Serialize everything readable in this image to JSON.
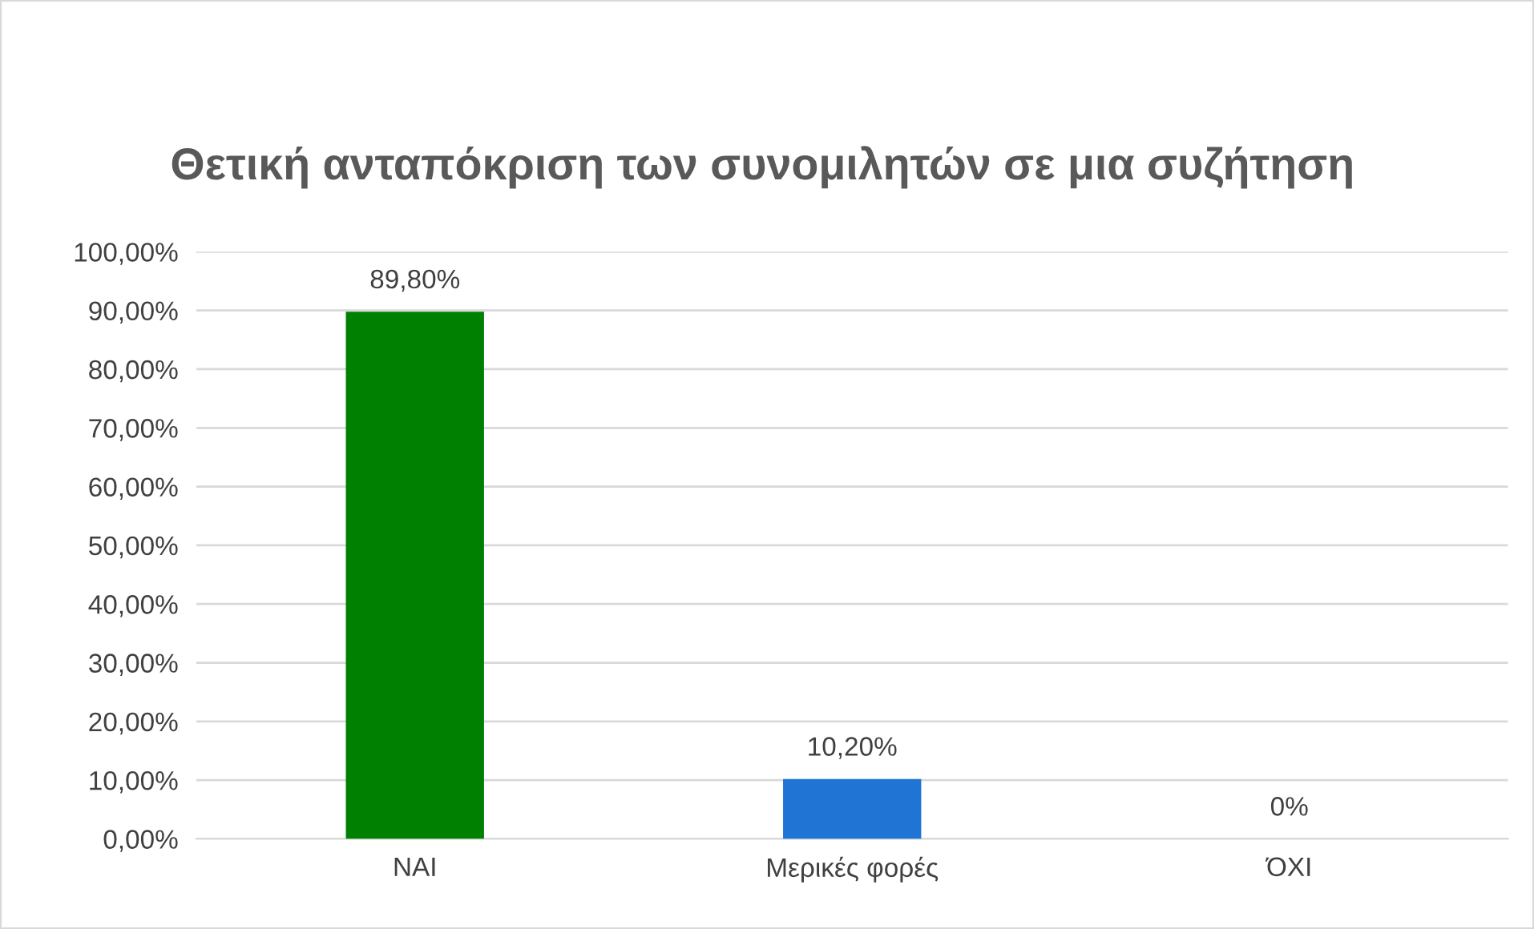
{
  "chart_data": {
    "type": "bar",
    "title": "Θετική ανταπόκριση των συνομιλητών σε μια συζήτηση",
    "categories": [
      "ΝΑΙ",
      "Μερικές φορές",
      "ΌΧΙ"
    ],
    "values": [
      89.8,
      10.2,
      0
    ],
    "colors": [
      "#008000",
      "#1f74d4",
      "#a5a5a5"
    ],
    "value_labels": [
      "89,80%",
      "10,20%",
      "0%"
    ],
    "ylim": [
      0,
      100
    ],
    "yticks": [
      {
        "value": 0,
        "label": "0,00%"
      },
      {
        "value": 10,
        "label": "10,00%"
      },
      {
        "value": 20,
        "label": "20,00%"
      },
      {
        "value": 30,
        "label": "30,00%"
      },
      {
        "value": 40,
        "label": "40,00%"
      },
      {
        "value": 50,
        "label": "50,00%"
      },
      {
        "value": 60,
        "label": "60,00%"
      },
      {
        "value": 70,
        "label": "70,00%"
      },
      {
        "value": 80,
        "label": "80,00%"
      },
      {
        "value": 90,
        "label": "90,00%"
      },
      {
        "value": 100,
        "label": "100,00%"
      }
    ],
    "grid": "y"
  }
}
